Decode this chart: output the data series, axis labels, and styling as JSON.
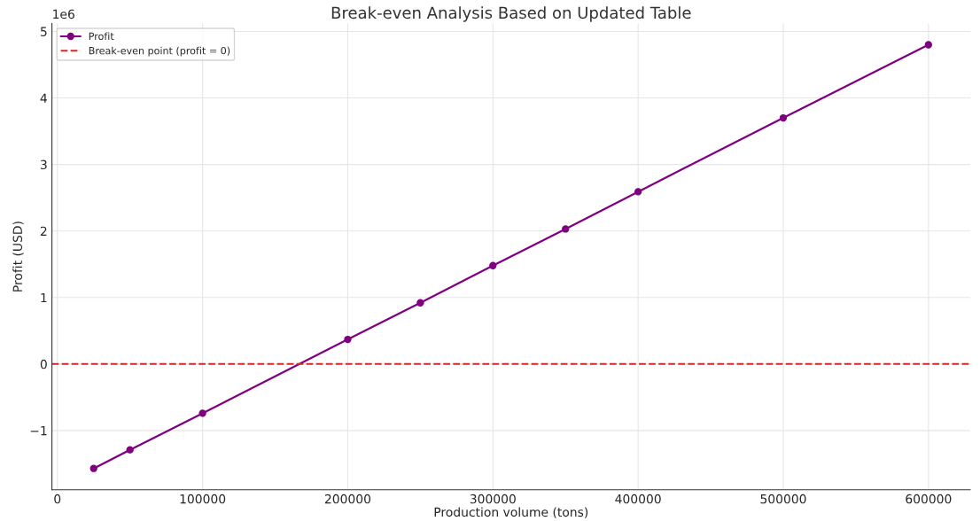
{
  "chart_data": {
    "type": "line",
    "title": "Break-even Analysis Based on Updated Table",
    "xlabel": "Production volume (tons)",
    "ylabel": "Profit (USD)",
    "x": [
      25000,
      50000,
      100000,
      200000,
      250000,
      300000,
      350000,
      400000,
      500000,
      600000
    ],
    "series": [
      {
        "name": "Profit",
        "color": "#800080",
        "values": [
          -1.57,
          -1.29,
          -0.74,
          0.37,
          0.92,
          1.48,
          2.03,
          2.59,
          3.7,
          4.8
        ]
      }
    ],
    "ref_lines": [
      {
        "axis": "y",
        "value": 0,
        "label": "Break-even point (profit = 0)",
        "color": "#d62728",
        "line_style": "dashed"
      }
    ],
    "xlim": [
      -3750,
      628750
    ],
    "ylim": [
      -1.89,
      5.12
    ],
    "xticks": [
      0,
      100000,
      200000,
      300000,
      400000,
      500000,
      600000
    ],
    "yticks": [
      {
        "value": -1,
        "label": "−1"
      },
      0,
      1,
      2,
      3,
      4,
      5
    ],
    "annotations": [
      "1e6"
    ],
    "grid": true,
    "legend": "top left",
    "marker": "circle",
    "line_style": "solid"
  }
}
